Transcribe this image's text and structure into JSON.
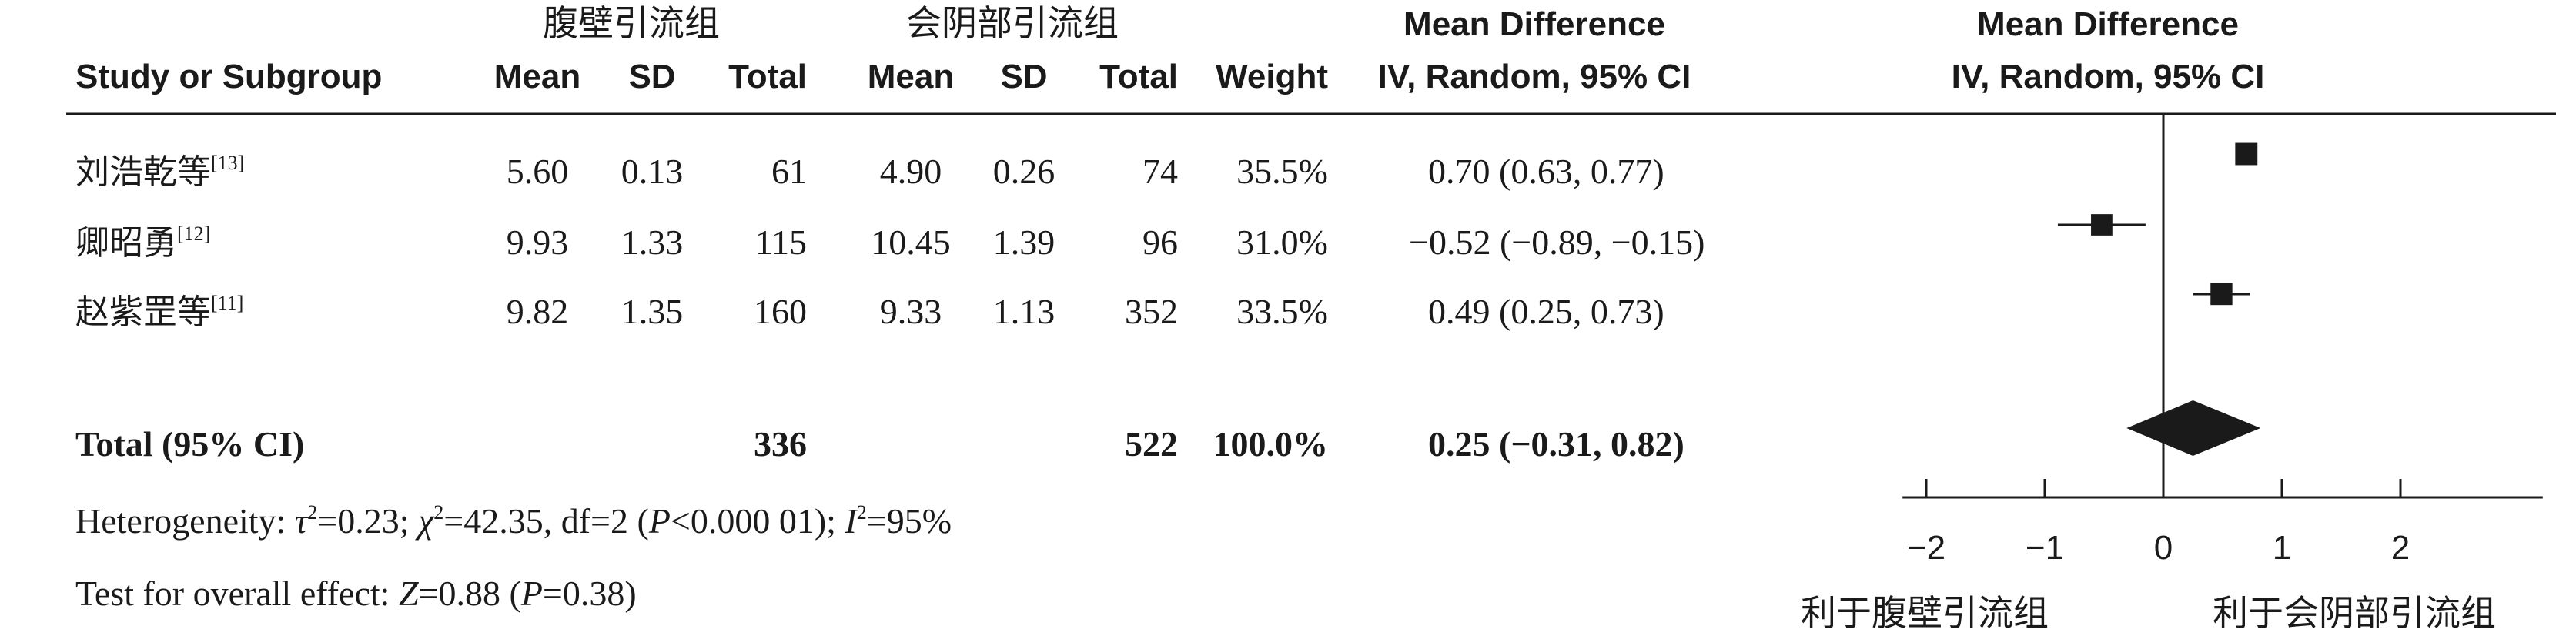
{
  "headers": {
    "study": "Study or Subgroup",
    "group1": "腹壁引流组",
    "group2": "会阴部引流组",
    "mean": "Mean",
    "sd": "SD",
    "total": "Total",
    "weight": "Weight",
    "md_line1": "Mean Difference",
    "md_line2": "IV, Random, 95% CI",
    "plot_line1": "Mean Difference",
    "plot_line2": "IV, Random, 95% CI"
  },
  "studies": [
    {
      "name": "刘浩乾等",
      "ref": "[13]",
      "mean1": "5.60",
      "sd1": "0.13",
      "total1": "61",
      "mean2": "4.90",
      "sd2": "0.26",
      "total2": "74",
      "weight": "35.5%",
      "ci_text": "0.70 (0.63, 0.77)"
    },
    {
      "name": "卿昭勇",
      "ref": "[12]",
      "mean1": "9.93",
      "sd1": "1.33",
      "total1": "115",
      "mean2": "10.45",
      "sd2": "1.39",
      "total2": "96",
      "weight": "31.0%",
      "ci_text": "−0.52 (−0.89, −0.15)"
    },
    {
      "name": "赵紫罡等",
      "ref": "[11]",
      "mean1": "9.82",
      "sd1": "1.35",
      "total1": "160",
      "mean2": "9.33",
      "sd2": "1.13",
      "total2": "352",
      "weight": "33.5%",
      "ci_text": "0.49 (0.25, 0.73)"
    }
  ],
  "total_row": {
    "label": "Total (95% CI)",
    "total1": "336",
    "total2": "522",
    "weight": "100.0%",
    "ci_text": "0.25 (−0.31, 0.82)"
  },
  "heterogeneity": {
    "prefix": "Heterogeneity: ",
    "tau_sym": "τ",
    "tau_val": "=0.23; ",
    "chi_sym": "χ",
    "chi_val": "=42.35, df=2 (",
    "p_sym": "P",
    "p_val": "<0.000 01); ",
    "i_sym": "I",
    "i_val": "=95%",
    "sup2": "2"
  },
  "overall_effect": {
    "prefix": "Test for overall effect: ",
    "z_sym": "Z",
    "z_val": "=0.88 (",
    "p_sym": "P",
    "p_val": "=0.38)"
  },
  "favours": {
    "left": "利于腹壁引流组",
    "right": "利于会阴部引流组"
  },
  "chart_data": {
    "type": "forest",
    "xlim": [
      -2.2,
      3.2
    ],
    "ticks": [
      -2,
      -1,
      0,
      1,
      2
    ],
    "tick_labels": [
      "−2",
      "−1",
      "0",
      "1",
      "2"
    ],
    "studies": [
      {
        "name": "刘浩乾等",
        "md": 0.7,
        "lower": 0.63,
        "upper": 0.77,
        "weight": 35.5
      },
      {
        "name": "卿昭勇",
        "md": -0.52,
        "lower": -0.89,
        "upper": -0.15,
        "weight": 31.0
      },
      {
        "name": "赵紫罡等",
        "md": 0.49,
        "lower": 0.25,
        "upper": 0.73,
        "weight": 33.5
      }
    ],
    "pooled": {
      "md": 0.25,
      "lower": -0.31,
      "upper": 0.82
    },
    "colors": {
      "ink": "#1a1a1a"
    }
  }
}
